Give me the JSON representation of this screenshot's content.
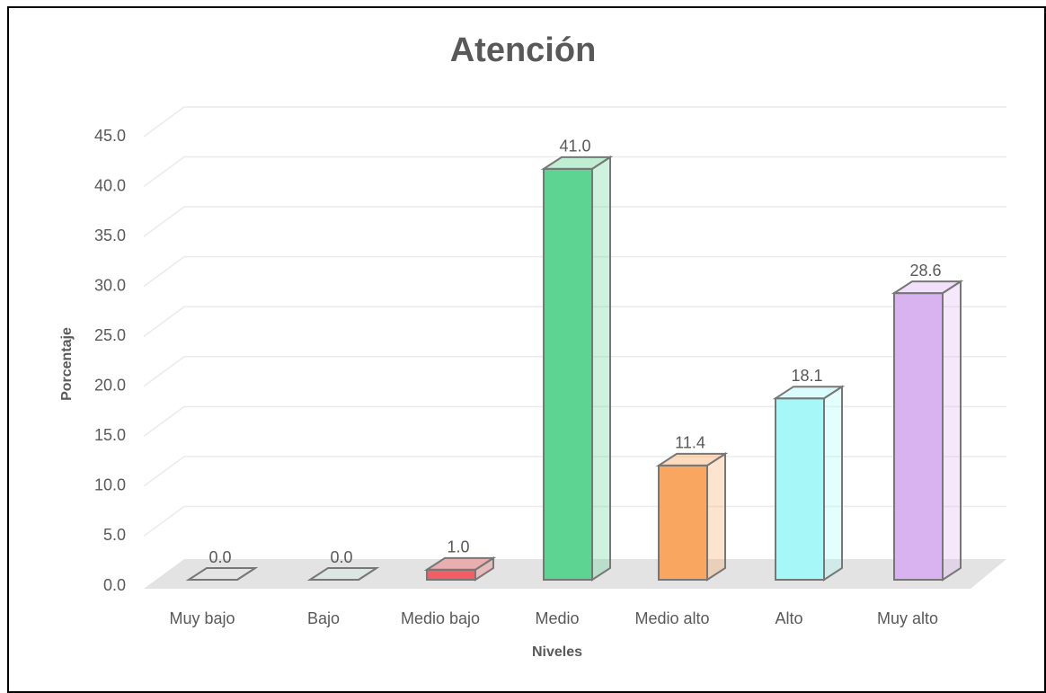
{
  "chart_data": {
    "type": "bar3d",
    "title": "Atención",
    "xlabel": "Niveles",
    "ylabel": "Porcentaje",
    "categories": [
      "Muy bajo",
      "Bajo",
      "Medio bajo",
      "Medio",
      "Medio alto",
      "Alto",
      "Muy alto"
    ],
    "values": [
      0,
      0,
      1,
      41,
      11.4,
      18.1,
      28.6
    ],
    "value_labels": [
      "0.0",
      "0.0",
      "1.0",
      "41.0",
      "11.4",
      "18.1",
      "28.6"
    ],
    "colors": [
      "#e6e6e6",
      "#d3ece3",
      "#ef5f63",
      "#5ed492",
      "#f8a660",
      "#a6f7f7",
      "#d9b2f0"
    ],
    "ylim": [
      0,
      45
    ],
    "yticks": [
      {
        "value": 0,
        "label": "0.0"
      },
      {
        "value": 5,
        "label": "5.0"
      },
      {
        "value": 10,
        "label": "10.0"
      },
      {
        "value": 15,
        "label": "15.0"
      },
      {
        "value": 20,
        "label": "20.0"
      },
      {
        "value": 25,
        "label": "25.0"
      },
      {
        "value": 30,
        "label": "30.0"
      },
      {
        "value": 35,
        "label": "35.0"
      },
      {
        "value": 40,
        "label": "40.0"
      },
      {
        "value": 45,
        "label": "45.0"
      }
    ],
    "grid": true
  }
}
